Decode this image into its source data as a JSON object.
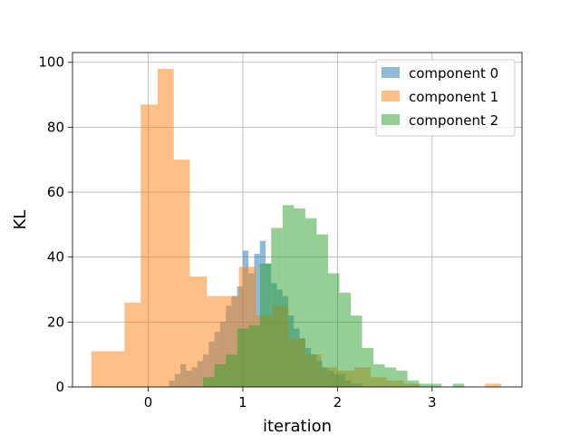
{
  "chart_data": {
    "type": "histogram",
    "title": "",
    "xlabel": "iteration",
    "ylabel": "KL",
    "xlim": [
      -0.8,
      3.95
    ],
    "ylim": [
      0,
      103
    ],
    "xticks": [
      0,
      1,
      2,
      3
    ],
    "yticks": [
      0,
      20,
      40,
      60,
      80,
      100
    ],
    "grid": true,
    "legend_position": "top-right",
    "series": [
      {
        "name": "component 0",
        "color": "#1f77b4",
        "alpha": 0.5,
        "bins": [
          [
            0.22,
            0.28,
            2
          ],
          [
            0.28,
            0.34,
            4
          ],
          [
            0.34,
            0.4,
            7
          ],
          [
            0.4,
            0.46,
            5
          ],
          [
            0.46,
            0.52,
            6
          ],
          [
            0.52,
            0.58,
            8
          ],
          [
            0.58,
            0.64,
            10
          ],
          [
            0.64,
            0.7,
            14
          ],
          [
            0.7,
            0.76,
            17
          ],
          [
            0.76,
            0.82,
            20
          ],
          [
            0.82,
            0.88,
            25
          ],
          [
            0.88,
            0.94,
            28
          ],
          [
            0.94,
            1.0,
            31
          ],
          [
            1.0,
            1.06,
            42
          ],
          [
            1.06,
            1.12,
            35
          ],
          [
            1.12,
            1.18,
            41
          ],
          [
            1.18,
            1.24,
            45
          ],
          [
            1.24,
            1.3,
            38
          ],
          [
            1.3,
            1.36,
            32
          ],
          [
            1.36,
            1.42,
            30
          ],
          [
            1.42,
            1.48,
            28
          ],
          [
            1.48,
            1.54,
            22
          ],
          [
            1.54,
            1.6,
            18
          ],
          [
            1.6,
            1.66,
            15
          ],
          [
            1.66,
            1.72,
            12
          ],
          [
            1.72,
            1.78,
            10
          ],
          [
            1.78,
            1.84,
            8
          ],
          [
            1.84,
            1.9,
            6
          ],
          [
            1.9,
            1.96,
            5
          ],
          [
            1.96,
            2.02,
            4
          ],
          [
            2.02,
            2.08,
            4
          ],
          [
            2.08,
            2.14,
            2
          ],
          [
            2.14,
            2.2,
            1
          ],
          [
            2.2,
            2.26,
            1
          ]
        ]
      },
      {
        "name": "component 1",
        "color": "#ff7f0e",
        "alpha": 0.5,
        "bins": [
          [
            -0.6,
            -0.42,
            11
          ],
          [
            -0.42,
            -0.25,
            11
          ],
          [
            -0.25,
            -0.08,
            26
          ],
          [
            -0.08,
            0.1,
            87
          ],
          [
            0.1,
            0.27,
            98
          ],
          [
            0.27,
            0.44,
            70
          ],
          [
            0.44,
            0.62,
            34
          ],
          [
            0.62,
            0.79,
            28
          ],
          [
            0.79,
            0.96,
            28
          ],
          [
            0.96,
            1.14,
            37
          ],
          [
            1.14,
            1.31,
            22
          ],
          [
            1.31,
            1.48,
            25
          ],
          [
            1.48,
            1.66,
            15
          ],
          [
            1.66,
            1.83,
            10
          ],
          [
            1.83,
            2.0,
            6
          ],
          [
            2.0,
            2.18,
            5
          ],
          [
            2.18,
            2.35,
            6
          ],
          [
            2.35,
            2.52,
            3
          ],
          [
            2.52,
            2.7,
            2
          ],
          [
            2.7,
            2.87,
            1
          ],
          [
            2.87,
            3.04,
            0
          ],
          [
            3.04,
            3.22,
            0
          ],
          [
            3.22,
            3.39,
            0
          ],
          [
            3.39,
            3.56,
            0
          ],
          [
            3.56,
            3.73,
            1
          ]
        ]
      },
      {
        "name": "component 2",
        "color": "#2ca02c",
        "alpha": 0.5,
        "bins": [
          [
            0.58,
            0.7,
            3
          ],
          [
            0.7,
            0.82,
            7
          ],
          [
            0.82,
            0.94,
            10
          ],
          [
            0.94,
            1.06,
            18
          ],
          [
            1.06,
            1.18,
            19
          ],
          [
            1.18,
            1.3,
            38
          ],
          [
            1.3,
            1.42,
            49
          ],
          [
            1.42,
            1.54,
            56
          ],
          [
            1.54,
            1.66,
            55
          ],
          [
            1.66,
            1.78,
            52
          ],
          [
            1.78,
            1.9,
            47
          ],
          [
            1.9,
            2.02,
            35
          ],
          [
            2.02,
            2.14,
            29
          ],
          [
            2.14,
            2.26,
            22
          ],
          [
            2.26,
            2.38,
            12
          ],
          [
            2.38,
            2.5,
            7
          ],
          [
            2.5,
            2.62,
            6
          ],
          [
            2.62,
            2.74,
            5
          ],
          [
            2.74,
            2.86,
            2
          ],
          [
            2.86,
            2.98,
            1
          ],
          [
            2.98,
            3.1,
            1
          ],
          [
            3.1,
            3.22,
            0
          ],
          [
            3.22,
            3.34,
            1
          ]
        ]
      }
    ]
  }
}
